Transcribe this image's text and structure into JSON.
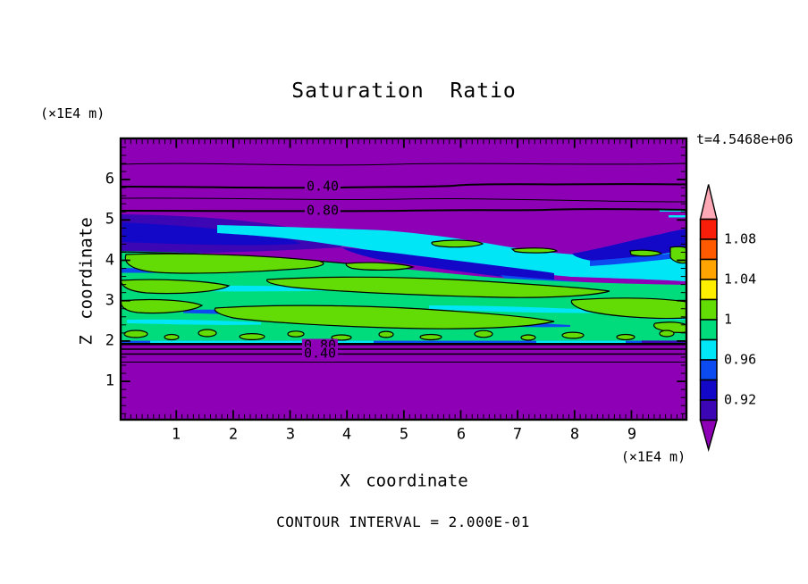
{
  "title": "Saturation Ratio",
  "time_annotation": "t=4.5468e+06",
  "x_axis": {
    "label": "X coordinate",
    "unit": "(×1E4 m)",
    "tick_labels": [
      "1",
      "2",
      "3",
      "4",
      "5",
      "6",
      "7",
      "8",
      "9"
    ]
  },
  "y_axis": {
    "label": "Z coordinate",
    "unit": "(×1E4 m)",
    "tick_labels": [
      "1",
      "2",
      "3",
      "4",
      "5",
      "6"
    ]
  },
  "footer": {
    "contour_interval": "CONTOUR INTERVAL = 2.000E-01"
  },
  "plot": {
    "contour_labels": {
      "upper_040": "0.40",
      "upper_080": "0.80",
      "lower_080": "0.80",
      "lower_040": "0.40"
    }
  },
  "colorbar": {
    "labels": [
      "1.08",
      "1.04",
      "1",
      "0.96",
      "0.92"
    ],
    "segments": [
      "red",
      "orange_red",
      "orange",
      "yellow",
      "green",
      "spring_green",
      "cyan",
      "blue",
      "navy",
      "indigo"
    ],
    "arrow_top": "pink",
    "arrow_bottom": "purple"
  },
  "palette": {
    "purple": "#8E00B6",
    "indigo": "#3C06B4",
    "navy": "#1408C8",
    "blue": "#0C4BF0",
    "cyan": "#00E6F6",
    "spring_green": "#00DC7C",
    "green": "#63DC05",
    "yellow": "#FFEE00",
    "orange": "#FFA400",
    "orange_red": "#FF5A00",
    "red": "#F81E0A",
    "pink": "#FFA9B7",
    "line": "#000000"
  },
  "chart_data": {
    "type": "heatmap",
    "subtype": "filled-contour",
    "title": "Saturation Ratio",
    "xlabel": "X coordinate",
    "x_unit": "(×1E4 m)",
    "ylabel": "Z coordinate",
    "y_unit": "(×1E4 m)",
    "xlim": [
      0,
      10
    ],
    "ylim": [
      0,
      7
    ],
    "x_major_ticks": [
      1,
      2,
      3,
      4,
      5,
      6,
      7,
      8,
      9
    ],
    "y_major_ticks": [
      1,
      2,
      3,
      4,
      5,
      6
    ],
    "time_annotation": "t=4.5468e+06",
    "contour_interval": 0.2,
    "contour_interval_label": "CONTOUR INTERVAL = 2.000E-01",
    "fill_levels": [
      0.9,
      0.92,
      0.94,
      0.96,
      0.98,
      1.0,
      1.02,
      1.04,
      1.06,
      1.08,
      1.1
    ],
    "colorbar_tick_labels": [
      "1.08",
      "1.04",
      "1",
      "0.96",
      "0.92"
    ],
    "labeled_line_contours": [
      {
        "value": 0.4,
        "z_upper_branch": 5.9,
        "z_lower_branch": 1.7
      },
      {
        "value": 0.8,
        "z_upper_branch": 5.2,
        "z_lower_branch": 1.9
      }
    ],
    "unlabeled_line_contours": [
      {
        "value": 0.2,
        "z_upper_branch": 6.4,
        "z_lower_branch": 1.5
      },
      {
        "value": 0.6,
        "z_upper_branch": 5.5,
        "z_lower_branch": 1.8
      }
    ],
    "field_summary": [
      "dry air (S < 0.2) near the top of the domain (z > 6.4) and below z ≈ 1.5",
      "purple fill marks S < 0.90 above z ≈ 5.2 and below z ≈ 2.0",
      "moist layer with S ≈ 0.96-1.02 between z ≈ 2.0 and z ≈ 4.5 spanning all x",
      "slightly supersaturated (S = 1.00-1.02) yellow-green patches embedded in the layer",
      "subsaturated dark-blue streak (S ≈ 0.90-0.94) sloping from (x≈0, z≈5.1) to (x≈8, z≈3.6)",
      "very sharp saturation drop across the layer base near z ≈ 2.0"
    ],
    "grid": false,
    "legend_position": "right-colorbar"
  }
}
